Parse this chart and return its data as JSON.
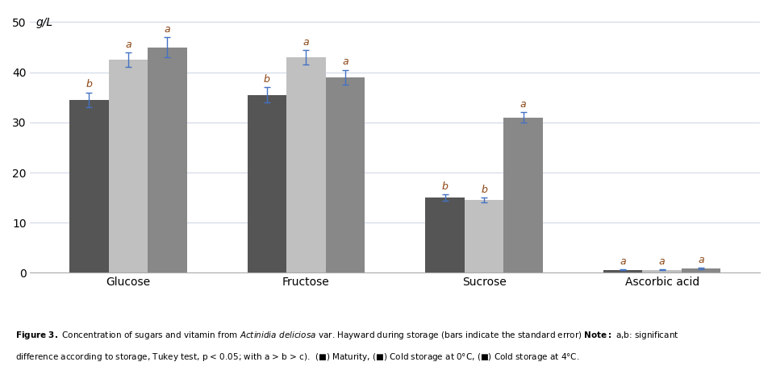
{
  "groups": [
    "Glucose",
    "Fructose",
    "Sucrose",
    "Ascorbic acid"
  ],
  "series_labels": [
    "Maturity",
    "Cold storage at 0°C",
    "Cold storage at 4°C"
  ],
  "values": [
    [
      34.5,
      42.5,
      45.0
    ],
    [
      35.5,
      43.0,
      39.0
    ],
    [
      15.0,
      14.5,
      31.0
    ],
    [
      0.6,
      0.6,
      0.9
    ]
  ],
  "errors": [
    [
      1.5,
      1.5,
      2.0
    ],
    [
      1.5,
      1.5,
      1.5
    ],
    [
      0.7,
      0.5,
      1.0
    ],
    [
      0.1,
      0.1,
      0.15
    ]
  ],
  "letters": [
    [
      "b",
      "a",
      "a"
    ],
    [
      "b",
      "a",
      "a"
    ],
    [
      "b",
      "b",
      "a"
    ],
    [
      "a",
      "a",
      "a"
    ]
  ],
  "bar_colors": [
    "#555555",
    "#c0c0c0",
    "#888888"
  ],
  "bar_width": 0.22,
  "ylim": [
    0,
    52
  ],
  "yticks": [
    0,
    10,
    20,
    30,
    40,
    50
  ],
  "ylabel": "g/L",
  "error_color": "#4472c4",
  "letter_color": "#8B4513",
  "background_color": "#ffffff",
  "grid_color": "#d0d8e8",
  "figure_caption": "Figure 3. Concentration of sugars and vitamin from Actinidia deliciosa var. Hayward during storage (bars indicate the standard error) Note: a,b: significant\ndifference according to storage, Tukey test, p < 0.05; with a > b > c).  (■) Maturity, (■) Cold storage at 0°C, (■) Cold storage at 4°C."
}
